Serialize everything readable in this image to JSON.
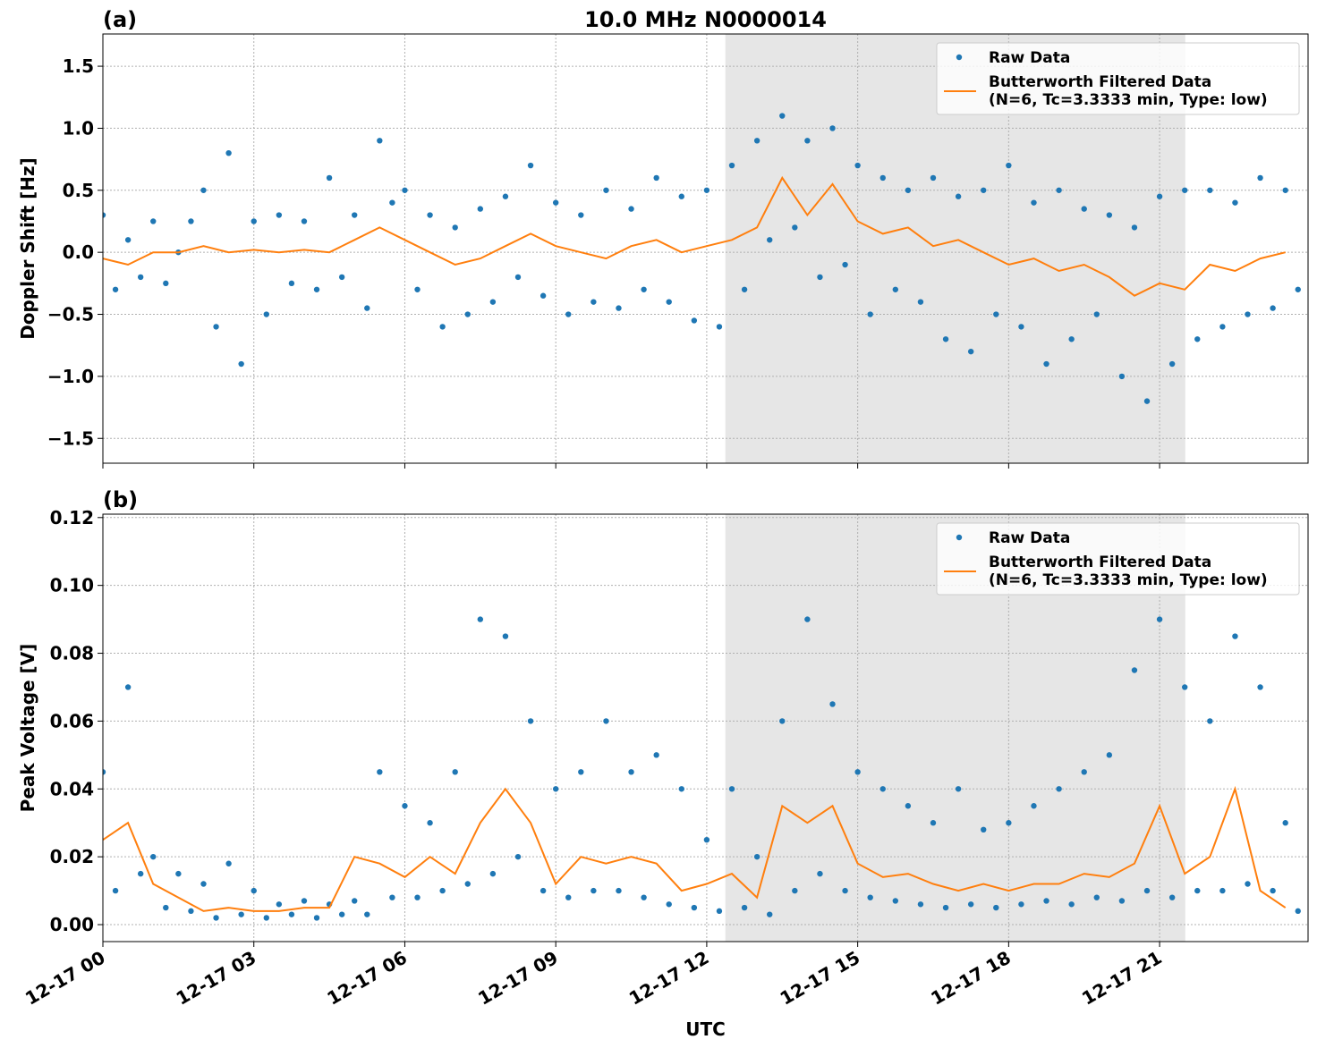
{
  "chart_data": [
    {
      "type": "line",
      "panel_label": "(a)",
      "title": "10.0 MHz N0000014",
      "ylabel": "Doppler Shift [Hz]",
      "xlim": [
        0,
        23.95
      ],
      "xticks": [
        0,
        3,
        6,
        9,
        12,
        15,
        18,
        21
      ],
      "ylim": [
        -1.7,
        1.76
      ],
      "yticks": [
        {
          "value": -1.5,
          "label": "−1.5"
        },
        {
          "value": -1.0,
          "label": "−1.0"
        },
        {
          "value": -0.5,
          "label": "−0.5"
        },
        {
          "value": 0,
          "label": "0.0"
        },
        {
          "value": 0.5,
          "label": "0.5"
        },
        {
          "value": 1.0,
          "label": "1.0"
        },
        {
          "value": 1.5,
          "label": "1.5"
        }
      ],
      "grid": true,
      "legend": "upper right",
      "shade": [
        12.37,
        21.51
      ],
      "series": [
        {
          "name": "Raw Data",
          "kind": "scatter",
          "color": "#1f77b4",
          "x": [
            0,
            0.25,
            0.5,
            0.75,
            1,
            1.25,
            1.5,
            1.75,
            2,
            2.25,
            2.5,
            2.75,
            3,
            3.25,
            3.5,
            3.75,
            4,
            4.25,
            4.5,
            4.75,
            5,
            5.25,
            5.5,
            5.75,
            6,
            6.25,
            6.5,
            6.75,
            7,
            7.25,
            7.5,
            7.75,
            8,
            8.25,
            8.5,
            8.75,
            9,
            9.25,
            9.5,
            9.75,
            10,
            10.25,
            10.5,
            10.75,
            11,
            11.25,
            11.5,
            11.75,
            12,
            12.25,
            12.5,
            12.75,
            13,
            13.25,
            13.5,
            13.75,
            14,
            14.25,
            14.5,
            14.75,
            15,
            15.25,
            15.5,
            15.75,
            16,
            16.25,
            16.5,
            16.75,
            17,
            17.25,
            17.5,
            17.75,
            18,
            18.25,
            18.5,
            18.75,
            19,
            19.25,
            19.5,
            19.75,
            20,
            20.25,
            20.5,
            20.75,
            21,
            21.25,
            21.5,
            21.75,
            22,
            22.25,
            22.5,
            22.75,
            23,
            23.25,
            23.5,
            23.75
          ],
          "values": [
            0.3,
            -0.3,
            0.1,
            -0.2,
            0.25,
            -0.25,
            0.0,
            0.25,
            0.5,
            -0.6,
            0.8,
            -0.9,
            0.25,
            -0.5,
            0.3,
            -0.25,
            0.25,
            -0.3,
            0.6,
            -0.2,
            0.3,
            -0.45,
            0.9,
            0.4,
            0.5,
            -0.3,
            0.3,
            -0.6,
            0.2,
            -0.5,
            0.35,
            -0.4,
            0.45,
            -0.2,
            0.7,
            -0.35,
            0.4,
            -0.5,
            0.3,
            -0.4,
            0.5,
            -0.45,
            0.35,
            -0.3,
            0.6,
            -0.4,
            0.45,
            -0.55,
            0.5,
            -0.6,
            0.7,
            -0.3,
            0.9,
            0.1,
            1.1,
            0.2,
            0.9,
            -0.2,
            1.0,
            -0.1,
            0.7,
            -0.5,
            0.6,
            -0.3,
            0.5,
            -0.4,
            0.6,
            -0.7,
            0.45,
            -0.8,
            0.5,
            -0.5,
            0.7,
            -0.6,
            0.4,
            -0.9,
            0.5,
            -0.7,
            0.35,
            -0.5,
            0.3,
            -1.0,
            0.2,
            -1.2,
            0.45,
            -0.9,
            0.5,
            -0.7,
            0.5,
            -0.6,
            0.4,
            -0.5,
            0.6,
            -0.45,
            0.5,
            -0.3
          ]
        },
        {
          "name": "Butterworth Filtered Data\n(N=6, Tc=3.3333 min, Type: low)",
          "kind": "line",
          "color": "#ff7f0e",
          "x": [
            0,
            0.5,
            1,
            1.5,
            2,
            2.5,
            3,
            3.5,
            4,
            4.5,
            5,
            5.5,
            6,
            6.5,
            7,
            7.5,
            8,
            8.5,
            9,
            9.5,
            10,
            10.5,
            11,
            11.5,
            12,
            12.5,
            13,
            13.5,
            14,
            14.5,
            15,
            15.5,
            16,
            16.5,
            17,
            17.5,
            18,
            18.5,
            19,
            19.5,
            20,
            20.5,
            21,
            21.5,
            22,
            22.5,
            23,
            23.5
          ],
          "values": [
            -0.05,
            -0.1,
            0.0,
            0.0,
            0.05,
            0.0,
            0.02,
            0.0,
            0.02,
            0.0,
            0.1,
            0.2,
            0.1,
            0.0,
            -0.1,
            -0.05,
            0.05,
            0.15,
            0.05,
            0.0,
            -0.05,
            0.05,
            0.1,
            0.0,
            0.05,
            0.1,
            0.2,
            0.6,
            0.3,
            0.55,
            0.25,
            0.15,
            0.2,
            0.05,
            0.1,
            0.0,
            -0.1,
            -0.05,
            -0.15,
            -0.1,
            -0.2,
            -0.35,
            -0.25,
            -0.3,
            -0.1,
            -0.15,
            -0.05,
            0.0
          ]
        }
      ]
    },
    {
      "type": "line",
      "panel_label": "(b)",
      "ylabel": "Peak Voltage [V]",
      "xlabel": "UTC",
      "xlim": [
        0,
        23.95
      ],
      "xticks": [
        {
          "value": 0,
          "label": "12-17 00"
        },
        {
          "value": 3,
          "label": "12-17 03"
        },
        {
          "value": 6,
          "label": "12-17 06"
        },
        {
          "value": 9,
          "label": "12-17 09"
        },
        {
          "value": 12,
          "label": "12-17 12"
        },
        {
          "value": 15,
          "label": "12-17 15"
        },
        {
          "value": 18,
          "label": "12-17 18"
        },
        {
          "value": 21,
          "label": "12-17 21"
        }
      ],
      "ylim": [
        -0.005,
        0.121
      ],
      "yticks": [
        {
          "value": 0,
          "label": "0.00"
        },
        {
          "value": 0.02,
          "label": "0.02"
        },
        {
          "value": 0.04,
          "label": "0.04"
        },
        {
          "value": 0.06,
          "label": "0.06"
        },
        {
          "value": 0.08,
          "label": "0.08"
        },
        {
          "value": 0.1,
          "label": "0.10"
        },
        {
          "value": 0.12,
          "label": "0.12"
        }
      ],
      "grid": true,
      "legend": "upper right",
      "shade": [
        12.37,
        21.51
      ],
      "series": [
        {
          "name": "Raw Data",
          "kind": "scatter",
          "color": "#1f77b4",
          "x": [
            0,
            0.25,
            0.5,
            0.75,
            1,
            1.25,
            1.5,
            1.75,
            2,
            2.25,
            2.5,
            2.75,
            3,
            3.25,
            3.5,
            3.75,
            4,
            4.25,
            4.5,
            4.75,
            5,
            5.25,
            5.5,
            5.75,
            6,
            6.25,
            6.5,
            6.75,
            7,
            7.25,
            7.5,
            7.75,
            8,
            8.25,
            8.5,
            8.75,
            9,
            9.25,
            9.5,
            9.75,
            10,
            10.25,
            10.5,
            10.75,
            11,
            11.25,
            11.5,
            11.75,
            12,
            12.25,
            12.5,
            12.75,
            13,
            13.25,
            13.5,
            13.75,
            14,
            14.25,
            14.5,
            14.75,
            15,
            15.25,
            15.5,
            15.75,
            16,
            16.25,
            16.5,
            16.75,
            17,
            17.25,
            17.5,
            17.75,
            18,
            18.25,
            18.5,
            18.75,
            19,
            19.25,
            19.5,
            19.75,
            20,
            20.25,
            20.5,
            20.75,
            21,
            21.25,
            21.5,
            21.75,
            22,
            22.25,
            22.5,
            22.75,
            23,
            23.25,
            23.5,
            23.75
          ],
          "values": [
            0.045,
            0.01,
            0.07,
            0.015,
            0.02,
            0.005,
            0.015,
            0.004,
            0.012,
            0.002,
            0.018,
            0.003,
            0.01,
            0.002,
            0.006,
            0.003,
            0.007,
            0.002,
            0.006,
            0.003,
            0.007,
            0.003,
            0.045,
            0.008,
            0.035,
            0.008,
            0.03,
            0.01,
            0.045,
            0.012,
            0.09,
            0.015,
            0.085,
            0.02,
            0.06,
            0.01,
            0.04,
            0.008,
            0.045,
            0.01,
            0.06,
            0.01,
            0.045,
            0.008,
            0.05,
            0.006,
            0.04,
            0.005,
            0.025,
            0.004,
            0.04,
            0.005,
            0.02,
            0.003,
            0.06,
            0.01,
            0.09,
            0.015,
            0.065,
            0.01,
            0.045,
            0.008,
            0.04,
            0.007,
            0.035,
            0.006,
            0.03,
            0.005,
            0.04,
            0.006,
            0.028,
            0.005,
            0.03,
            0.006,
            0.035,
            0.007,
            0.04,
            0.006,
            0.045,
            0.008,
            0.05,
            0.007,
            0.075,
            0.01,
            0.09,
            0.008,
            0.07,
            0.01,
            0.06,
            0.01,
            0.085,
            0.012,
            0.07,
            0.01,
            0.03,
            0.004
          ]
        },
        {
          "name": "Butterworth Filtered Data\n(N=6, Tc=3.3333 min, Type: low)",
          "kind": "line",
          "color": "#ff7f0e",
          "x": [
            0,
            0.5,
            1,
            1.5,
            2,
            2.5,
            3,
            3.5,
            4,
            4.5,
            5,
            5.5,
            6,
            6.5,
            7,
            7.5,
            8,
            8.5,
            9,
            9.5,
            10,
            10.5,
            11,
            11.5,
            12,
            12.5,
            13,
            13.5,
            14,
            14.5,
            15,
            15.5,
            16,
            16.5,
            17,
            17.5,
            18,
            18.5,
            19,
            19.5,
            20,
            20.5,
            21,
            21.5,
            22,
            22.5,
            23,
            23.5
          ],
          "values": [
            0.025,
            0.03,
            0.012,
            0.008,
            0.004,
            0.005,
            0.004,
            0.004,
            0.005,
            0.005,
            0.02,
            0.018,
            0.014,
            0.02,
            0.015,
            0.03,
            0.04,
            0.03,
            0.012,
            0.02,
            0.018,
            0.02,
            0.018,
            0.01,
            0.012,
            0.015,
            0.008,
            0.035,
            0.03,
            0.035,
            0.018,
            0.014,
            0.015,
            0.012,
            0.01,
            0.012,
            0.01,
            0.012,
            0.012,
            0.015,
            0.014,
            0.018,
            0.035,
            0.015,
            0.02,
            0.04,
            0.01,
            0.005
          ]
        }
      ]
    }
  ]
}
